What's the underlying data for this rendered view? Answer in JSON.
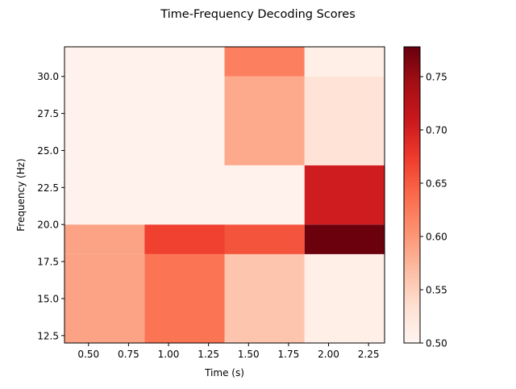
{
  "chart_data": {
    "type": "heatmap",
    "title": "Time-Frequency Decoding Scores",
    "xlabel": "Time (s)",
    "ylabel": "Frequency (Hz)",
    "xlim": [
      0.35,
      2.35
    ],
    "ylim": [
      12.0,
      32.0
    ],
    "xticks": [
      "0.50",
      "0.75",
      "1.00",
      "1.25",
      "1.50",
      "1.75",
      "2.00",
      "2.25"
    ],
    "xtick_values": [
      0.5,
      0.75,
      1.0,
      1.25,
      1.5,
      1.75,
      2.0,
      2.25
    ],
    "yticks": [
      "12.5",
      "15.0",
      "17.5",
      "20.0",
      "22.5",
      "25.0",
      "27.5",
      "30.0"
    ],
    "ytick_values": [
      12.5,
      15.0,
      17.5,
      20.0,
      22.5,
      25.0,
      27.5,
      30.0
    ],
    "time_bins": [
      0.35,
      0.85,
      1.35,
      1.85,
      2.35
    ],
    "freq_bins": [
      12.0,
      18.0,
      20.0,
      24.0,
      30.0,
      32.0
    ],
    "values": [
      [
        0.59,
        0.63,
        0.56,
        0.51
      ],
      [
        0.59,
        0.67,
        0.655,
        0.775
      ],
      [
        0.505,
        0.505,
        0.505,
        0.705
      ],
      [
        0.505,
        0.505,
        0.585,
        0.53
      ],
      [
        0.505,
        0.505,
        0.62,
        0.51
      ]
    ],
    "colormap": "Reds",
    "colorbar": {
      "min": 0.5,
      "max": 0.778,
      "ticks": [
        "0.50",
        "0.55",
        "0.60",
        "0.65",
        "0.70",
        "0.75"
      ],
      "tick_values": [
        0.5,
        0.55,
        0.6,
        0.65,
        0.7,
        0.75
      ]
    },
    "grid": false
  }
}
